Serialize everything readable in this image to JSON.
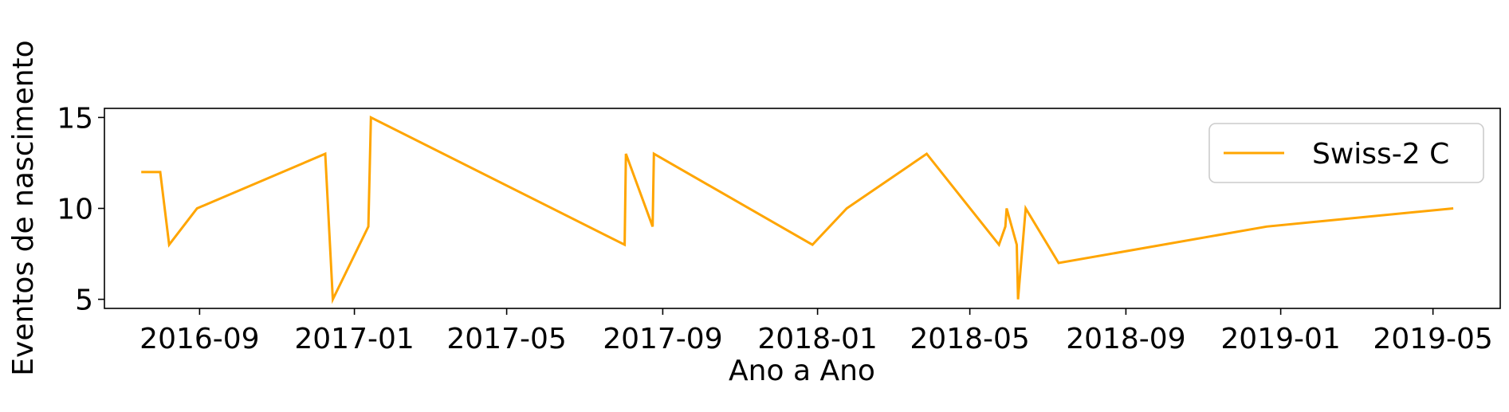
{
  "chart_data": {
    "type": "line",
    "title": "",
    "xlabel": "Ano a Ano",
    "ylabel": "Eventos de nascimento",
    "x_tick_labels": [
      "2016-09",
      "2017-01",
      "2017-05",
      "2017-09",
      "2018-01",
      "2018-05",
      "2018-09",
      "2019-01",
      "2019-05"
    ],
    "x_ticks": [
      "2016-09-01",
      "2017-01-01",
      "2017-05-01",
      "2017-09-01",
      "2018-01-01",
      "2018-05-01",
      "2018-09-01",
      "2019-01-01",
      "2019-05-01"
    ],
    "xlim": [
      "2016-06-18",
      "2019-06-23"
    ],
    "y_ticks": [
      5,
      10,
      15
    ],
    "y_tick_labels": [
      "5",
      "10",
      "15"
    ],
    "ylim": [
      4.5,
      15.5
    ],
    "grid": false,
    "legend_position": "upper right",
    "series": [
      {
        "name": "Swiss-2 C",
        "color": "#FFA500",
        "points": [
          {
            "x": "2016-07-17",
            "y": 12
          },
          {
            "x": "2016-08-01",
            "y": 12
          },
          {
            "x": "2016-08-08",
            "y": 8
          },
          {
            "x": "2016-08-30",
            "y": 10
          },
          {
            "x": "2016-12-09",
            "y": 13
          },
          {
            "x": "2016-12-15",
            "y": 5
          },
          {
            "x": "2017-01-12",
            "y": 9
          },
          {
            "x": "2017-01-14",
            "y": 15
          },
          {
            "x": "2017-08-02",
            "y": 8
          },
          {
            "x": "2017-08-03",
            "y": 13
          },
          {
            "x": "2017-08-24",
            "y": 9
          },
          {
            "x": "2017-08-25",
            "y": 13
          },
          {
            "x": "2017-12-28",
            "y": 8
          },
          {
            "x": "2018-01-24",
            "y": 10
          },
          {
            "x": "2018-03-28",
            "y": 13
          },
          {
            "x": "2018-05-24",
            "y": 8
          },
          {
            "x": "2018-05-29",
            "y": 9
          },
          {
            "x": "2018-05-30",
            "y": 10
          },
          {
            "x": "2018-06-07",
            "y": 8
          },
          {
            "x": "2018-06-08",
            "y": 5
          },
          {
            "x": "2018-06-14",
            "y": 10
          },
          {
            "x": "2018-07-10",
            "y": 7
          },
          {
            "x": "2018-12-21",
            "y": 9
          },
          {
            "x": "2019-05-17",
            "y": 10
          }
        ]
      }
    ]
  }
}
